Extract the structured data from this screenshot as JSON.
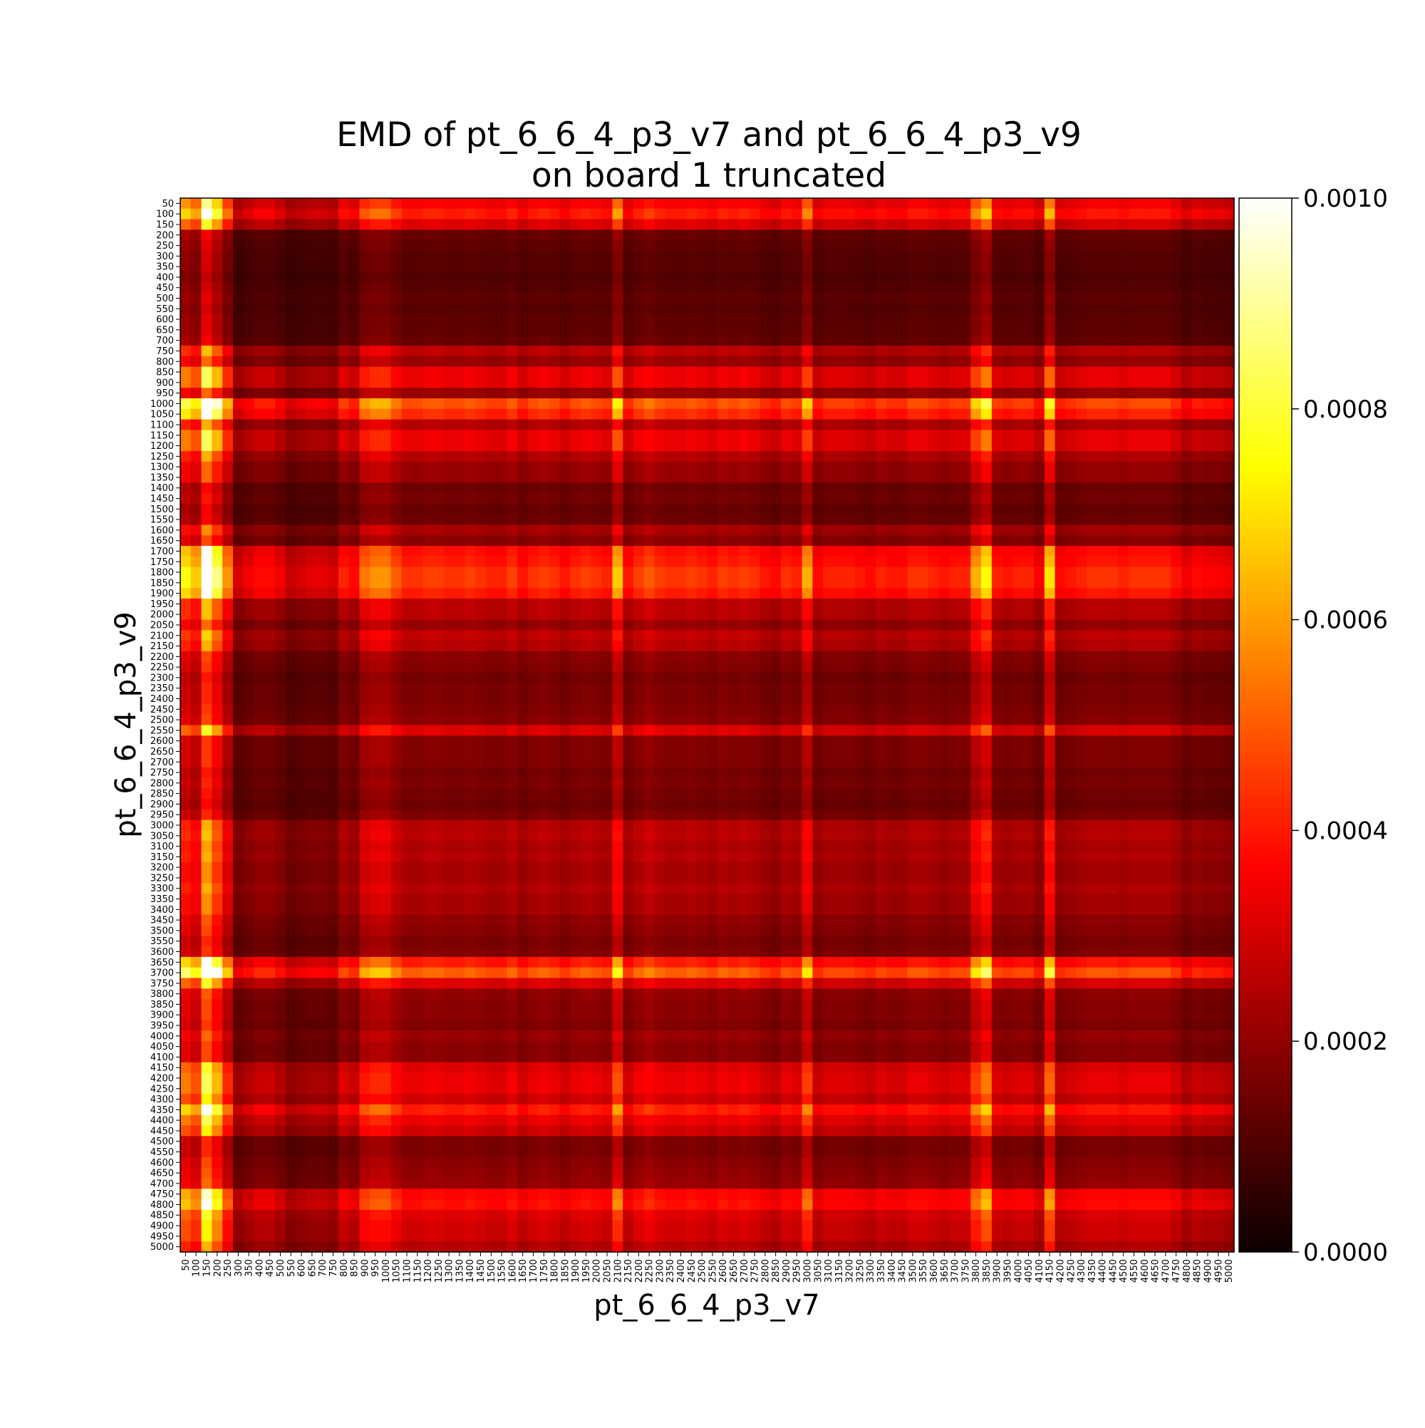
{
  "chart_data": {
    "type": "heatmap",
    "title_line1": "EMD of pt_6_6_4_p3_v7 and pt_6_6_4_p3_v9",
    "title_line2": "on board 1 truncated",
    "xlabel": "pt_6_6_4_p3_v7",
    "ylabel": "pt_6_6_4_p3_v9",
    "x_categories": [
      "50",
      "100",
      "150",
      "200",
      "250",
      "300",
      "350",
      "400",
      "450",
      "500",
      "550",
      "600",
      "650",
      "700",
      "750",
      "800",
      "850",
      "900",
      "950",
      "1000",
      "1050",
      "1100",
      "1150",
      "1200",
      "1250",
      "1300",
      "1350",
      "1400",
      "1450",
      "1500",
      "1550",
      "1600",
      "1650",
      "1700",
      "1750",
      "1800",
      "1850",
      "1900",
      "1950",
      "2000",
      "2050",
      "2100",
      "2150",
      "2200",
      "2250",
      "2300",
      "2350",
      "2400",
      "2450",
      "2500",
      "2550",
      "2600",
      "2650",
      "2700",
      "2750",
      "2800",
      "2850",
      "2900",
      "2950",
      "3000",
      "3050",
      "3100",
      "3150",
      "3200",
      "3250",
      "3300",
      "3350",
      "3400",
      "3450",
      "3500",
      "3550",
      "3600",
      "3650",
      "3700",
      "3750",
      "3800",
      "3850",
      "3900",
      "3950",
      "4000",
      "4050",
      "4100",
      "4150",
      "4200",
      "4250",
      "4300",
      "4350",
      "4400",
      "4450",
      "4500",
      "4550",
      "4600",
      "4650",
      "4700",
      "4750",
      "4800",
      "4850",
      "4900",
      "4950",
      "5000"
    ],
    "y_categories": [
      "50",
      "100",
      "150",
      "200",
      "250",
      "300",
      "350",
      "400",
      "450",
      "500",
      "550",
      "600",
      "650",
      "700",
      "750",
      "800",
      "850",
      "900",
      "950",
      "1000",
      "1050",
      "1100",
      "1150",
      "1200",
      "1250",
      "1300",
      "1350",
      "1400",
      "1450",
      "1500",
      "1550",
      "1600",
      "1650",
      "1700",
      "1750",
      "1800",
      "1850",
      "1900",
      "1950",
      "2000",
      "2050",
      "2100",
      "2150",
      "2200",
      "2250",
      "2300",
      "2350",
      "2400",
      "2450",
      "2500",
      "2550",
      "2600",
      "2650",
      "2700",
      "2750",
      "2800",
      "2850",
      "2900",
      "2950",
      "3000",
      "3050",
      "3100",
      "3150",
      "3200",
      "3250",
      "3300",
      "3350",
      "3400",
      "3450",
      "3500",
      "3550",
      "3600",
      "3650",
      "3700",
      "3750",
      "3800",
      "3850",
      "3900",
      "3950",
      "4000",
      "4050",
      "4100",
      "4150",
      "4200",
      "4250",
      "4300",
      "4350",
      "4400",
      "4450",
      "4500",
      "4550",
      "4600",
      "4650",
      "4700",
      "4750",
      "4800",
      "4850",
      "4900",
      "4950",
      "5000"
    ],
    "row_profile": [
      0.00034,
      0.0004,
      0.0003,
      0.00013,
      0.00012,
      0.00011,
      0.00011,
      0.0001,
      0.00011,
      0.00012,
      0.00011,
      0.00012,
      0.00012,
      0.00013,
      0.00025,
      0.0002,
      0.00032,
      0.00032,
      0.0002,
      0.00048,
      0.00042,
      0.00024,
      0.00032,
      0.00032,
      0.00024,
      0.0002,
      0.0002,
      0.00014,
      0.00015,
      0.00013,
      0.00014,
      0.00022,
      0.00018,
      0.00038,
      0.0004,
      0.00044,
      0.00044,
      0.0004,
      0.00025,
      0.00025,
      0.0002,
      0.00026,
      0.00024,
      0.00018,
      0.00017,
      0.00015,
      0.00016,
      0.00016,
      0.00017,
      0.00018,
      0.0003,
      0.00017,
      0.00017,
      0.00017,
      0.00015,
      0.00016,
      0.00015,
      0.00014,
      0.00016,
      0.00024,
      0.00025,
      0.00023,
      0.00024,
      0.00022,
      0.00022,
      0.00024,
      0.00022,
      0.00022,
      0.00019,
      0.00018,
      0.00016,
      0.00017,
      0.0004,
      0.0005,
      0.0003,
      0.00019,
      0.00018,
      0.00018,
      0.00017,
      0.0002,
      0.00018,
      0.00018,
      0.0003,
      0.00032,
      0.00032,
      0.00028,
      0.0004,
      0.00032,
      0.00028,
      0.00016,
      0.00016,
      0.00018,
      0.00019,
      0.0002,
      0.00036,
      0.00038,
      0.0003,
      0.00028,
      0.00028,
      0.00024
    ],
    "col_profile": [
      0.00036,
      0.00032,
      0.00055,
      0.00042,
      0.00028,
      0.00014,
      0.00016,
      0.00018,
      0.00018,
      0.00016,
      0.00013,
      0.00014,
      0.00015,
      0.00015,
      0.00014,
      0.0002,
      0.00018,
      0.00026,
      0.00028,
      0.00028,
      0.00024,
      0.00021,
      0.00021,
      0.00022,
      0.00022,
      0.00021,
      0.00021,
      0.00022,
      0.00021,
      0.0002,
      0.0002,
      0.00022,
      0.00019,
      0.00021,
      0.00022,
      0.00021,
      0.00019,
      0.00021,
      0.00022,
      0.00021,
      0.0002,
      0.00032,
      0.00019,
      0.00022,
      0.00024,
      0.00022,
      0.00021,
      0.00021,
      0.00022,
      0.00021,
      0.0002,
      0.00022,
      0.00021,
      0.00022,
      0.00021,
      0.00019,
      0.00018,
      0.00021,
      0.0002,
      0.0003,
      0.00018,
      0.0002,
      0.0002,
      0.0002,
      0.00019,
      0.00018,
      0.0002,
      0.00019,
      0.00019,
      0.00021,
      0.00021,
      0.0002,
      0.00019,
      0.0002,
      0.0002,
      0.0003,
      0.00036,
      0.0002,
      0.00019,
      0.0002,
      0.0002,
      0.00017,
      0.00034,
      0.00018,
      0.00019,
      0.0002,
      0.00021,
      0.00021,
      0.00021,
      0.0002,
      0.00021,
      0.00021,
      0.00021,
      0.00021,
      0.00019,
      0.00016,
      0.00018,
      0.00017,
      0.00017,
      0.00016
    ],
    "vmin": 0.0,
    "vmax": 0.001,
    "colorbar_ticks": [
      "0.0000",
      "0.0002",
      "0.0004",
      "0.0006",
      "0.0008",
      "0.0010"
    ],
    "colormap": "hot",
    "grid": false,
    "legend": "colorbar-right"
  }
}
